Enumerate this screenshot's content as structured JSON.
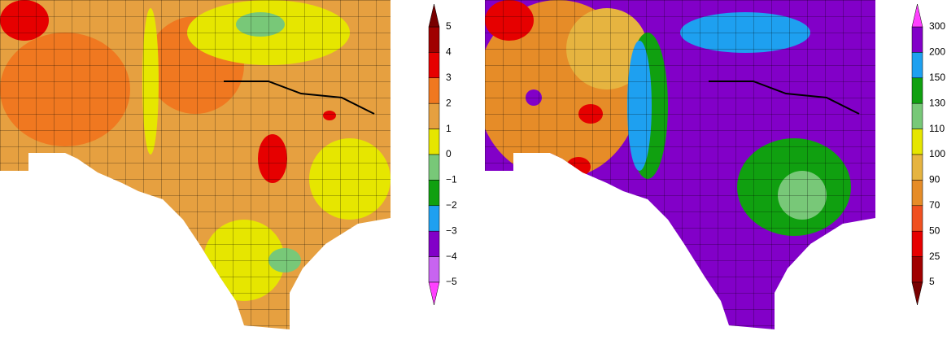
{
  "legends": [
    {
      "labels": [
        "5",
        "4",
        "3",
        "2",
        "1",
        "0",
        "−1",
        "−2",
        "−3",
        "−4",
        "−5"
      ],
      "colors": [
        "#a00000",
        "#e60000",
        "#f07820",
        "#e6a040",
        "#e6e600",
        "#78c878",
        "#10a010",
        "#1ea0f0",
        "#8200c8",
        "#c864f0"
      ],
      "cap_colors": [
        "#780000",
        "#ff40ff"
      ]
    },
    {
      "labels": [
        "300",
        "200",
        "150",
        "130",
        "110",
        "100",
        "90",
        "70",
        "50",
        "25",
        "5"
      ],
      "colors": [
        "#8200c8",
        "#1ea0f0",
        "#10a010",
        "#78c878",
        "#e6e600",
        "#e6b440",
        "#e68c28",
        "#f05020",
        "#e60000",
        "#a00000"
      ],
      "cap_colors": [
        "#ff40ff",
        "#780000"
      ]
    }
  ]
}
